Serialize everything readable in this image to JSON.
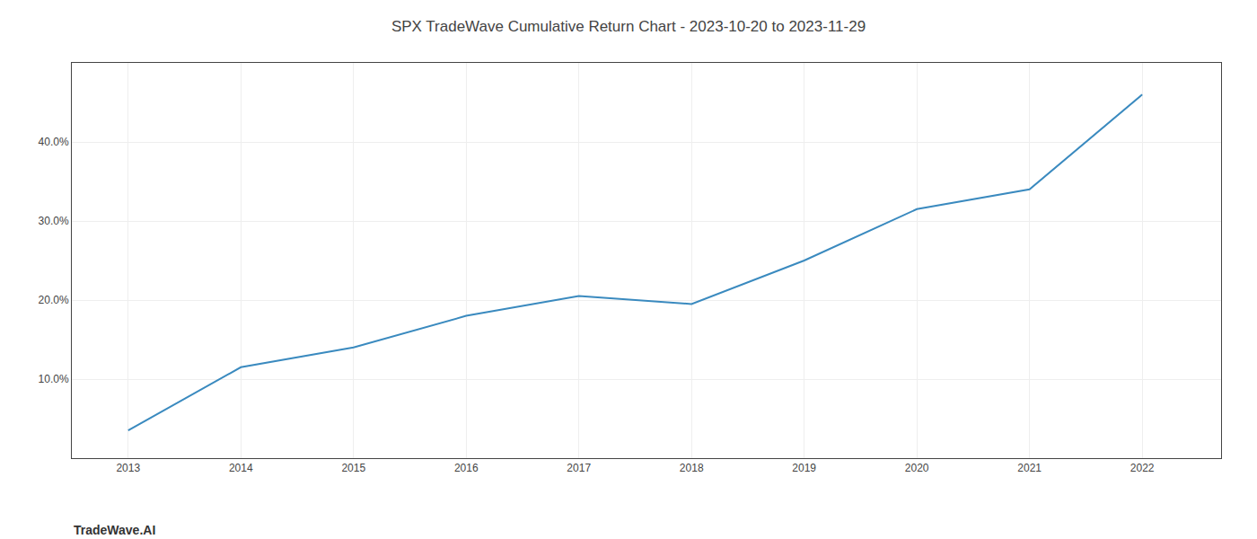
{
  "chart_data": {
    "type": "line",
    "title": "SPX TradeWave Cumulative Return Chart - 2023-10-20 to 2023-11-29",
    "annotations": [
      "TradeWave.AI"
    ],
    "x": [
      2013,
      2014,
      2015,
      2016,
      2017,
      2018,
      2019,
      2020,
      2021,
      2022
    ],
    "values": [
      3.5,
      11.5,
      14.0,
      18.0,
      20.5,
      19.5,
      25.0,
      31.5,
      34.0,
      46.0
    ],
    "color": "#3a8abf",
    "xlim": [
      2012.5,
      2022.7
    ],
    "xticks": [
      2013,
      2014,
      2015,
      2016,
      2017,
      2018,
      2019,
      2020,
      2021,
      2022
    ],
    "ylim": [
      0,
      50
    ],
    "yticks": [
      {
        "value": 10.0,
        "label": "10.0%"
      },
      {
        "value": 20.0,
        "label": "20.0%"
      },
      {
        "value": 30.0,
        "label": "30.0%"
      },
      {
        "value": 40.0,
        "label": "40.0%"
      }
    ],
    "grid": true
  }
}
